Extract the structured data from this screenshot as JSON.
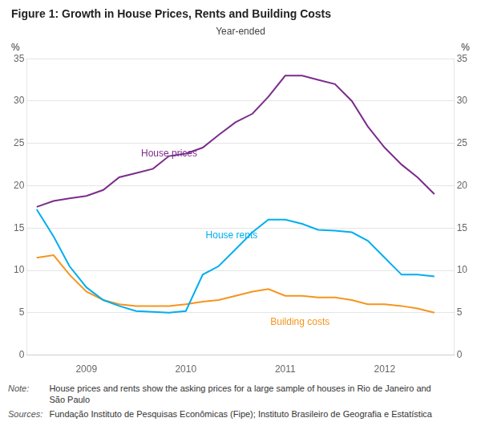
{
  "chart_data": {
    "type": "line",
    "title": "Figure 1: Growth in House Prices, Rents and Building Costs",
    "subtitle": "Year-ended",
    "ylabel": "%",
    "y2label": "%",
    "xlim": [
      2008.4,
      2012.7
    ],
    "xticks": [
      2009,
      2010,
      2011,
      2012
    ],
    "ylim": [
      0,
      35
    ],
    "yticks": [
      0,
      5,
      10,
      15,
      20,
      25,
      30,
      35
    ],
    "y2lim": [
      0,
      35
    ],
    "y2ticks": [
      0,
      5,
      10,
      15,
      20,
      25,
      30,
      35
    ],
    "grid": true,
    "x": [
      2008.5,
      2008.67,
      2008.83,
      2009.0,
      2009.17,
      2009.33,
      2009.5,
      2009.67,
      2009.83,
      2010.0,
      2010.17,
      2010.33,
      2010.5,
      2010.67,
      2010.83,
      2011.0,
      2011.17,
      2011.33,
      2011.5,
      2011.67,
      2011.83,
      2012.0,
      2012.17,
      2012.33,
      2012.5
    ],
    "series": [
      {
        "name": "House prices",
        "color": "#7B2D8B",
        "label_position": [
          2009.55,
          23.5
        ],
        "values": [
          17.5,
          18.2,
          18.5,
          18.8,
          19.5,
          21.0,
          21.5,
          22.0,
          23.5,
          23.8,
          24.5,
          26.0,
          27.5,
          28.5,
          30.5,
          33.0,
          33.0,
          32.5,
          32.0,
          30.0,
          27.0,
          24.5,
          22.5,
          21.0,
          19.0
        ]
      },
      {
        "name": "House rents",
        "color": "#00AEEF",
        "label_position": [
          2010.2,
          13.8
        ],
        "values": [
          17.2,
          14.0,
          10.5,
          8.0,
          6.5,
          5.8,
          5.2,
          5.1,
          5.0,
          5.2,
          9.5,
          10.5,
          12.5,
          14.5,
          16.0,
          16.0,
          15.5,
          14.8,
          14.7,
          14.5,
          13.5,
          11.5,
          9.5,
          9.5,
          9.3
        ]
      },
      {
        "name": "Building costs",
        "color": "#F7941D",
        "label_position": [
          2010.85,
          3.6
        ],
        "values": [
          11.5,
          11.8,
          9.5,
          7.5,
          6.5,
          6.0,
          5.8,
          5.8,
          5.8,
          6.0,
          6.3,
          6.5,
          7.0,
          7.5,
          7.8,
          7.0,
          7.0,
          6.8,
          6.8,
          6.5,
          6.0,
          6.0,
          5.8,
          5.5,
          5.0
        ]
      }
    ],
    "notes": [
      {
        "label": "Note:",
        "text": "House prices and rents show the asking prices for a large sample of houses in Rio de Janeiro and\nSão Paulo"
      },
      {
        "label": "Sources:",
        "text": "Fundação Instituto de Pesquisas Econômicas (Fipe); Instituto Brasileiro de Geografia e Estatística"
      }
    ]
  }
}
